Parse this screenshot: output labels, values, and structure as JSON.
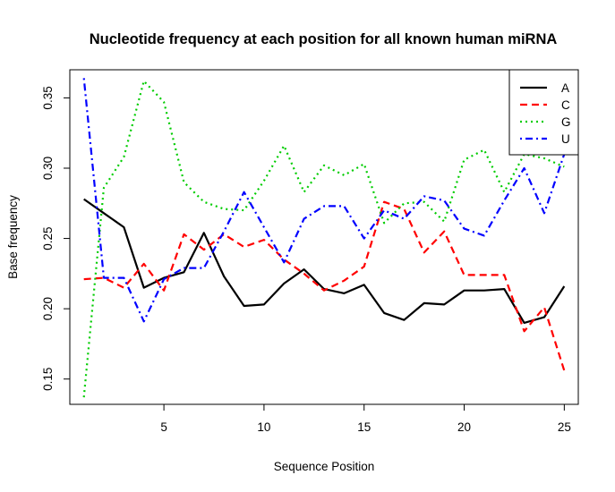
{
  "chart_data": {
    "type": "line",
    "title": "Nucleotide frequency at each position for all known human miRNA",
    "xlabel": "Sequence Position",
    "ylabel": "Base frequency",
    "xlim": [
      0.3,
      25.7
    ],
    "ylim": [
      0.132,
      0.37
    ],
    "x_ticks": [
      5,
      10,
      15,
      20,
      25
    ],
    "y_ticks": [
      0.15,
      0.2,
      0.25,
      0.3,
      0.35
    ],
    "y_tick_labels": [
      "0.15",
      "0.20",
      "0.25",
      "0.30",
      "0.35"
    ],
    "grid": false,
    "legend_position": "top-right",
    "x": [
      1,
      2,
      3,
      4,
      5,
      6,
      7,
      8,
      9,
      10,
      11,
      12,
      13,
      14,
      15,
      16,
      17,
      18,
      19,
      20,
      21,
      22,
      23,
      24,
      25
    ],
    "series": [
      {
        "name": "A",
        "color": "#000000",
        "dash": "solid",
        "values": [
          0.278,
          0.268,
          0.258,
          0.215,
          0.222,
          0.226,
          0.254,
          0.223,
          0.202,
          0.203,
          0.218,
          0.228,
          0.214,
          0.211,
          0.217,
          0.197,
          0.192,
          0.204,
          0.203,
          0.213,
          0.213,
          0.214,
          0.19,
          0.194,
          0.216
        ]
      },
      {
        "name": "C",
        "color": "#ff0000",
        "dash": "dashed",
        "values": [
          0.221,
          0.222,
          0.215,
          0.232,
          0.213,
          0.253,
          0.242,
          0.253,
          0.244,
          0.249,
          0.235,
          0.225,
          0.213,
          0.22,
          0.23,
          0.276,
          0.271,
          0.24,
          0.255,
          0.224,
          0.224,
          0.224,
          0.184,
          0.201,
          0.156
        ]
      },
      {
        "name": "G",
        "color": "#00cc00",
        "dash": "dotted",
        "values": [
          0.137,
          0.286,
          0.308,
          0.362,
          0.347,
          0.29,
          0.276,
          0.271,
          0.27,
          0.291,
          0.316,
          0.283,
          0.302,
          0.295,
          0.303,
          0.261,
          0.275,
          0.276,
          0.262,
          0.306,
          0.313,
          0.283,
          0.31,
          0.307,
          0.301
        ]
      },
      {
        "name": "U",
        "color": "#0000ff",
        "dash": "dotdash",
        "values": [
          0.364,
          0.222,
          0.222,
          0.191,
          0.221,
          0.229,
          0.229,
          0.255,
          0.283,
          0.258,
          0.233,
          0.264,
          0.273,
          0.273,
          0.25,
          0.27,
          0.264,
          0.28,
          0.277,
          0.257,
          0.252,
          0.277,
          0.3,
          0.268,
          0.31
        ]
      }
    ]
  }
}
